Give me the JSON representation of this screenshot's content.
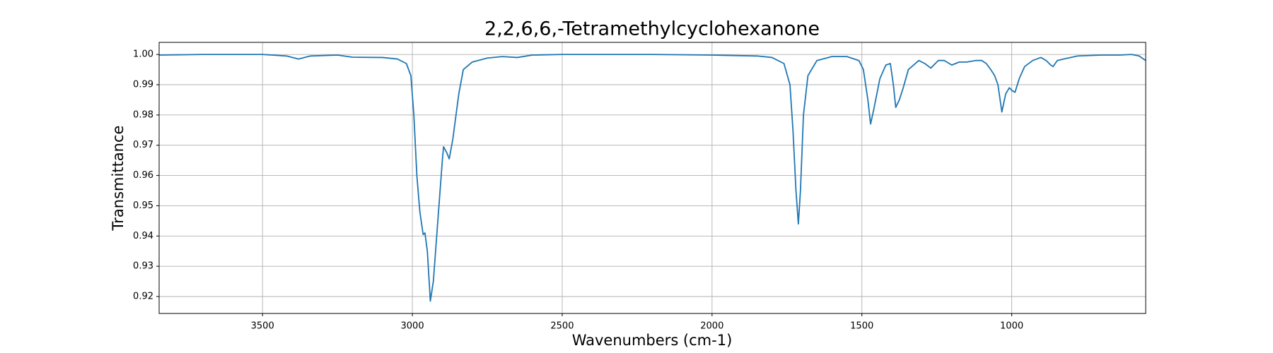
{
  "chart_data": {
    "type": "line",
    "title": "2,2,6,6,-Tetramethylcyclohexanone",
    "x_label": "Wavenumbers (cm-1)",
    "y_label": "Transmittance",
    "color": "#1f77b4",
    "xlim": [
      3845,
      553
    ],
    "ylim": [
      0.9144,
      1.004
    ],
    "x_reversed": true,
    "grid": true,
    "xticks": [
      3500,
      3000,
      2500,
      2000,
      1500,
      1000
    ],
    "yticks": [
      0.92,
      0.93,
      0.94,
      0.95,
      0.96,
      0.97,
      0.98,
      0.99,
      {
        "value": 1,
        "label": "1.00"
      }
    ],
    "x": [
      3844,
      3700,
      3500,
      3420,
      3380,
      3340,
      3250,
      3200,
      3100,
      3050,
      3020,
      3005,
      2995,
      2985,
      2975,
      2964,
      2958,
      2950,
      2940,
      2930,
      2915,
      2900,
      2896,
      2885,
      2877,
      2865,
      2845,
      2830,
      2800,
      2750,
      2700,
      2650,
      2600,
      2500,
      2200,
      2000,
      1850,
      1800,
      1760,
      1740,
      1730,
      1720,
      1712,
      1705,
      1695,
      1680,
      1650,
      1600,
      1550,
      1510,
      1495,
      1480,
      1471,
      1460,
      1440,
      1420,
      1405,
      1395,
      1387,
      1375,
      1362,
      1345,
      1310,
      1290,
      1270,
      1245,
      1225,
      1200,
      1175,
      1150,
      1120,
      1100,
      1085,
      1070,
      1057,
      1046,
      1033,
      1020,
      1008,
      998,
      989,
      975,
      957,
      930,
      903,
      885,
      870,
      862,
      848,
      827,
      780,
      700,
      640,
      600,
      575,
      553
    ],
    "values": [
      0.9998,
      1.0,
      1.0,
      0.9995,
      0.9985,
      0.9995,
      0.9998,
      0.9991,
      0.999,
      0.9985,
      0.997,
      0.993,
      0.98,
      0.96,
      0.948,
      0.9405,
      0.941,
      0.935,
      0.9185,
      0.925,
      0.945,
      0.965,
      0.9695,
      0.9675,
      0.9655,
      0.972,
      0.987,
      0.995,
      0.9975,
      0.9988,
      0.9993,
      0.999,
      0.9998,
      1.0,
      1.0,
      0.9998,
      0.9995,
      0.999,
      0.997,
      0.99,
      0.975,
      0.955,
      0.944,
      0.955,
      0.98,
      0.993,
      0.998,
      0.9993,
      0.9993,
      0.998,
      0.995,
      0.985,
      0.977,
      0.982,
      0.992,
      0.9965,
      0.997,
      0.99,
      0.9825,
      0.985,
      0.989,
      0.995,
      0.998,
      0.997,
      0.9955,
      0.998,
      0.998,
      0.9965,
      0.9975,
      0.9975,
      0.998,
      0.998,
      0.997,
      0.995,
      0.993,
      0.99,
      0.981,
      0.987,
      0.989,
      0.988,
      0.9875,
      0.992,
      0.996,
      0.998,
      0.999,
      0.998,
      0.9965,
      0.996,
      0.998,
      0.9985,
      0.9995,
      0.9998,
      0.9998,
      1.0,
      0.9995,
      0.998
    ]
  }
}
